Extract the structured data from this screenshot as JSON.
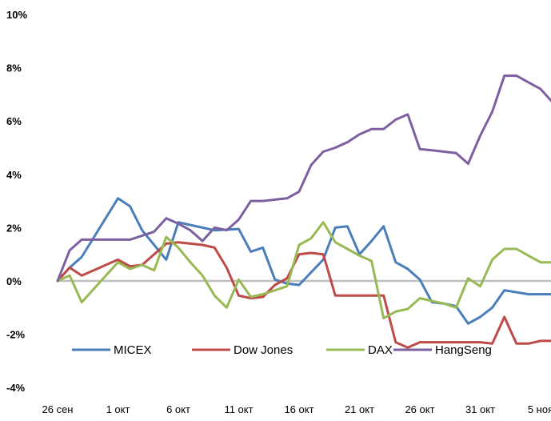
{
  "chart_data": {
    "type": "line",
    "title": "",
    "xlabel": "",
    "ylabel": "",
    "x_range": [
      0,
      41
    ],
    "ylim": [
      -4,
      10
    ],
    "y_ticks": [
      -4,
      -2,
      0,
      2,
      4,
      6,
      8,
      10
    ],
    "y_tick_labels": [
      "-4%",
      "-2%",
      "0%",
      "2%",
      "4%",
      "6%",
      "8%",
      "10%"
    ],
    "x_ticks": [
      0,
      5,
      10,
      15,
      20,
      25,
      30,
      35,
      40
    ],
    "x_tick_labels": [
      "26 сен",
      "1 окт",
      "6 окт",
      "11 окт",
      "16 окт",
      "21 окт",
      "26 окт",
      "31 окт",
      "5 ноя"
    ],
    "legend_position": "bottom",
    "zero_line": true,
    "series": [
      {
        "name": "MICEX",
        "color": "#4a7ebb",
        "x": [
          0,
          1,
          2,
          5,
          6,
          7,
          9,
          10,
          11,
          12,
          13,
          15,
          16,
          17,
          18,
          19,
          20,
          22,
          23,
          24,
          25,
          26,
          27,
          28,
          29,
          30,
          31,
          32,
          33,
          34,
          35,
          36,
          37,
          39,
          41
        ],
        "y": [
          0,
          0.5,
          0.9,
          3.1,
          2.8,
          1.9,
          0.8,
          2.2,
          2.1,
          2.0,
          1.9,
          1.95,
          1.1,
          1.25,
          0.05,
          -0.1,
          -0.15,
          0.8,
          2.0,
          2.05,
          1.0,
          1.5,
          2.05,
          0.7,
          0.45,
          0.05,
          -0.8,
          -0.85,
          -0.95,
          -1.6,
          -1.35,
          -1.0,
          -0.35,
          -0.5,
          -0.5
        ]
      },
      {
        "name": "Dow Jones",
        "color": "#be4b48",
        "x": [
          0,
          1,
          2,
          5,
          6,
          7,
          9,
          10,
          11,
          12,
          13,
          14,
          15,
          16,
          17,
          18,
          19,
          20,
          21,
          22,
          23,
          24,
          25,
          27,
          28,
          29,
          30,
          31,
          35,
          36,
          37,
          38,
          39,
          40,
          41
        ],
        "y": [
          0,
          0.5,
          0.2,
          0.8,
          0.55,
          0.6,
          1.4,
          1.45,
          1.4,
          1.35,
          1.25,
          0.5,
          -0.55,
          -0.65,
          -0.6,
          -0.15,
          0.1,
          1.0,
          1.05,
          1.0,
          -0.55,
          -0.55,
          -0.55,
          -0.55,
          -2.3,
          -2.5,
          -2.3,
          -2.3,
          -2.3,
          -2.35,
          -1.35,
          -2.35,
          -2.35,
          -2.25,
          -2.25
        ]
      },
      {
        "name": "DAX",
        "color": "#98b954",
        "x": [
          0,
          1,
          2,
          5,
          6,
          7,
          8,
          9,
          10,
          11,
          12,
          13,
          14,
          15,
          16,
          17,
          18,
          19,
          20,
          21,
          22,
          23,
          24,
          25,
          26,
          27,
          28,
          29,
          30,
          31,
          32,
          33,
          34,
          35,
          36,
          37,
          38,
          39,
          40,
          41
        ],
        "y": [
          0,
          0.2,
          -0.8,
          0.7,
          0.45,
          0.6,
          0.4,
          1.65,
          1.25,
          0.7,
          0.2,
          -0.55,
          -1.0,
          0.05,
          -0.6,
          -0.5,
          -0.35,
          -0.2,
          1.35,
          1.6,
          2.2,
          1.45,
          1.2,
          0.95,
          0.75,
          -1.4,
          -1.15,
          -1.05,
          -0.65,
          -0.75,
          -0.85,
          -1.0,
          0.1,
          -0.2,
          0.8,
          1.2,
          1.2,
          0.95,
          0.7,
          0.7
        ]
      },
      {
        "name": "HangSeng",
        "color": "#7d60a0",
        "x": [
          0,
          1,
          2,
          3,
          5,
          6,
          7,
          8,
          9,
          10,
          11,
          12,
          13,
          14,
          15,
          16,
          17,
          18,
          19,
          20,
          21,
          22,
          23,
          24,
          25,
          26,
          27,
          28,
          29,
          30,
          31,
          32,
          33,
          34,
          35,
          36,
          37,
          38,
          39,
          40,
          41
        ],
        "y": [
          0,
          1.15,
          1.55,
          1.55,
          1.55,
          1.55,
          1.7,
          1.85,
          2.35,
          2.15,
          1.9,
          1.5,
          2.0,
          1.9,
          2.3,
          3.0,
          3.0,
          3.05,
          3.1,
          3.35,
          4.35,
          4.85,
          5.0,
          5.2,
          5.5,
          5.7,
          5.7,
          6.05,
          6.25,
          4.95,
          4.9,
          4.85,
          4.8,
          4.4,
          5.45,
          6.35,
          7.7,
          7.7,
          7.45,
          7.2,
          6.7
        ]
      }
    ]
  }
}
